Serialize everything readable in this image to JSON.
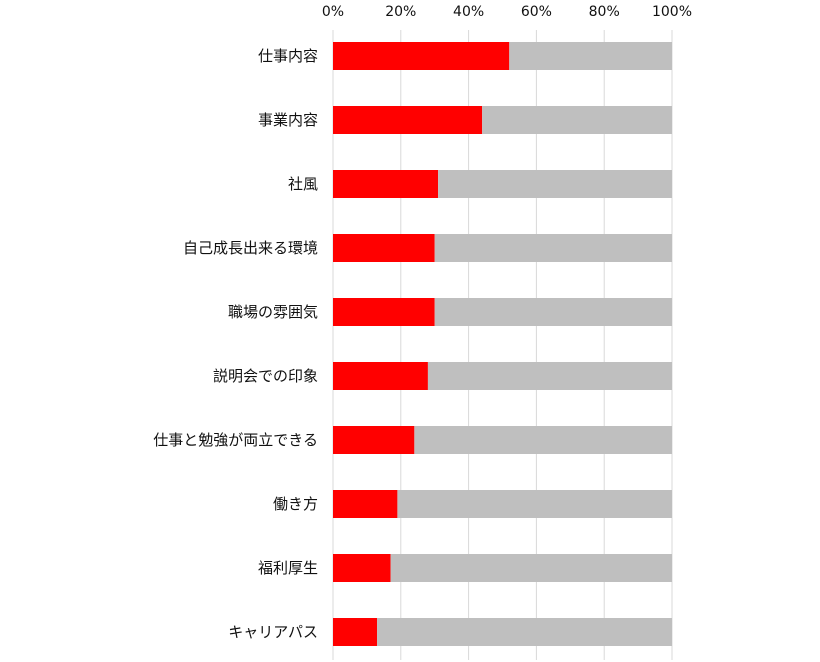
{
  "chart_data": {
    "type": "bar",
    "orientation": "horizontal",
    "stacked_percent": true,
    "categories": [
      "仕事内容",
      "事業内容",
      "社風",
      "自己成長出来る環境",
      "職場の雰囲気",
      "説明会での印象",
      "仕事と勉強が両立できる",
      "働き方",
      "福利厚生",
      "キャリアパス"
    ],
    "series": [
      {
        "values": [
          52,
          44,
          31,
          30,
          30,
          28,
          24,
          19,
          17,
          13
        ],
        "color": "#ff0000"
      },
      {
        "values": [
          48,
          56,
          69,
          70,
          70,
          72,
          76,
          81,
          83,
          87
        ],
        "color": "#bfbfbf"
      }
    ],
    "xlim": [
      0,
      100
    ],
    "x_ticks": [
      0,
      20,
      40,
      60,
      80,
      100
    ],
    "x_tick_labels": [
      "0%",
      "20%",
      "40%",
      "60%",
      "80%",
      "100%"
    ],
    "axis_position": "top",
    "grid": true,
    "legend": "none",
    "title": "",
    "xlabel": "",
    "ylabel": ""
  }
}
